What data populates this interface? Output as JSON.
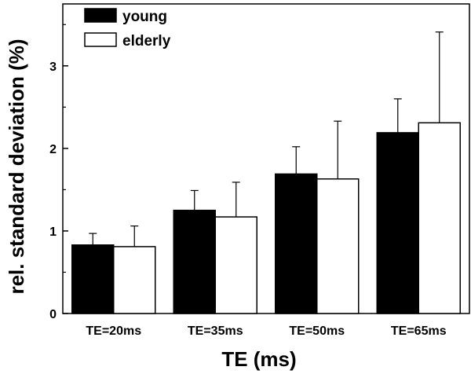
{
  "chart_data": {
    "type": "bar",
    "xlabel": "TE (ms)",
    "ylabel": "rel. standard deviation (%)",
    "categories": [
      "TE=20ms",
      "TE=35ms",
      "TE=50ms",
      "TE=65ms"
    ],
    "ylim": [
      0,
      3.75
    ],
    "yticks": [
      "0",
      "1",
      "2",
      "3"
    ],
    "grid": false,
    "legend": "top-left",
    "series": [
      {
        "name": "young",
        "color": "#000000",
        "values": [
          0.83,
          1.25,
          1.69,
          2.19
        ],
        "errors": [
          0.14,
          0.24,
          0.33,
          0.41
        ]
      },
      {
        "name": "elderly",
        "color": "#ffffff",
        "values": [
          0.81,
          1.17,
          1.63,
          2.31
        ],
        "errors": [
          0.25,
          0.42,
          0.7,
          1.1
        ]
      }
    ]
  }
}
